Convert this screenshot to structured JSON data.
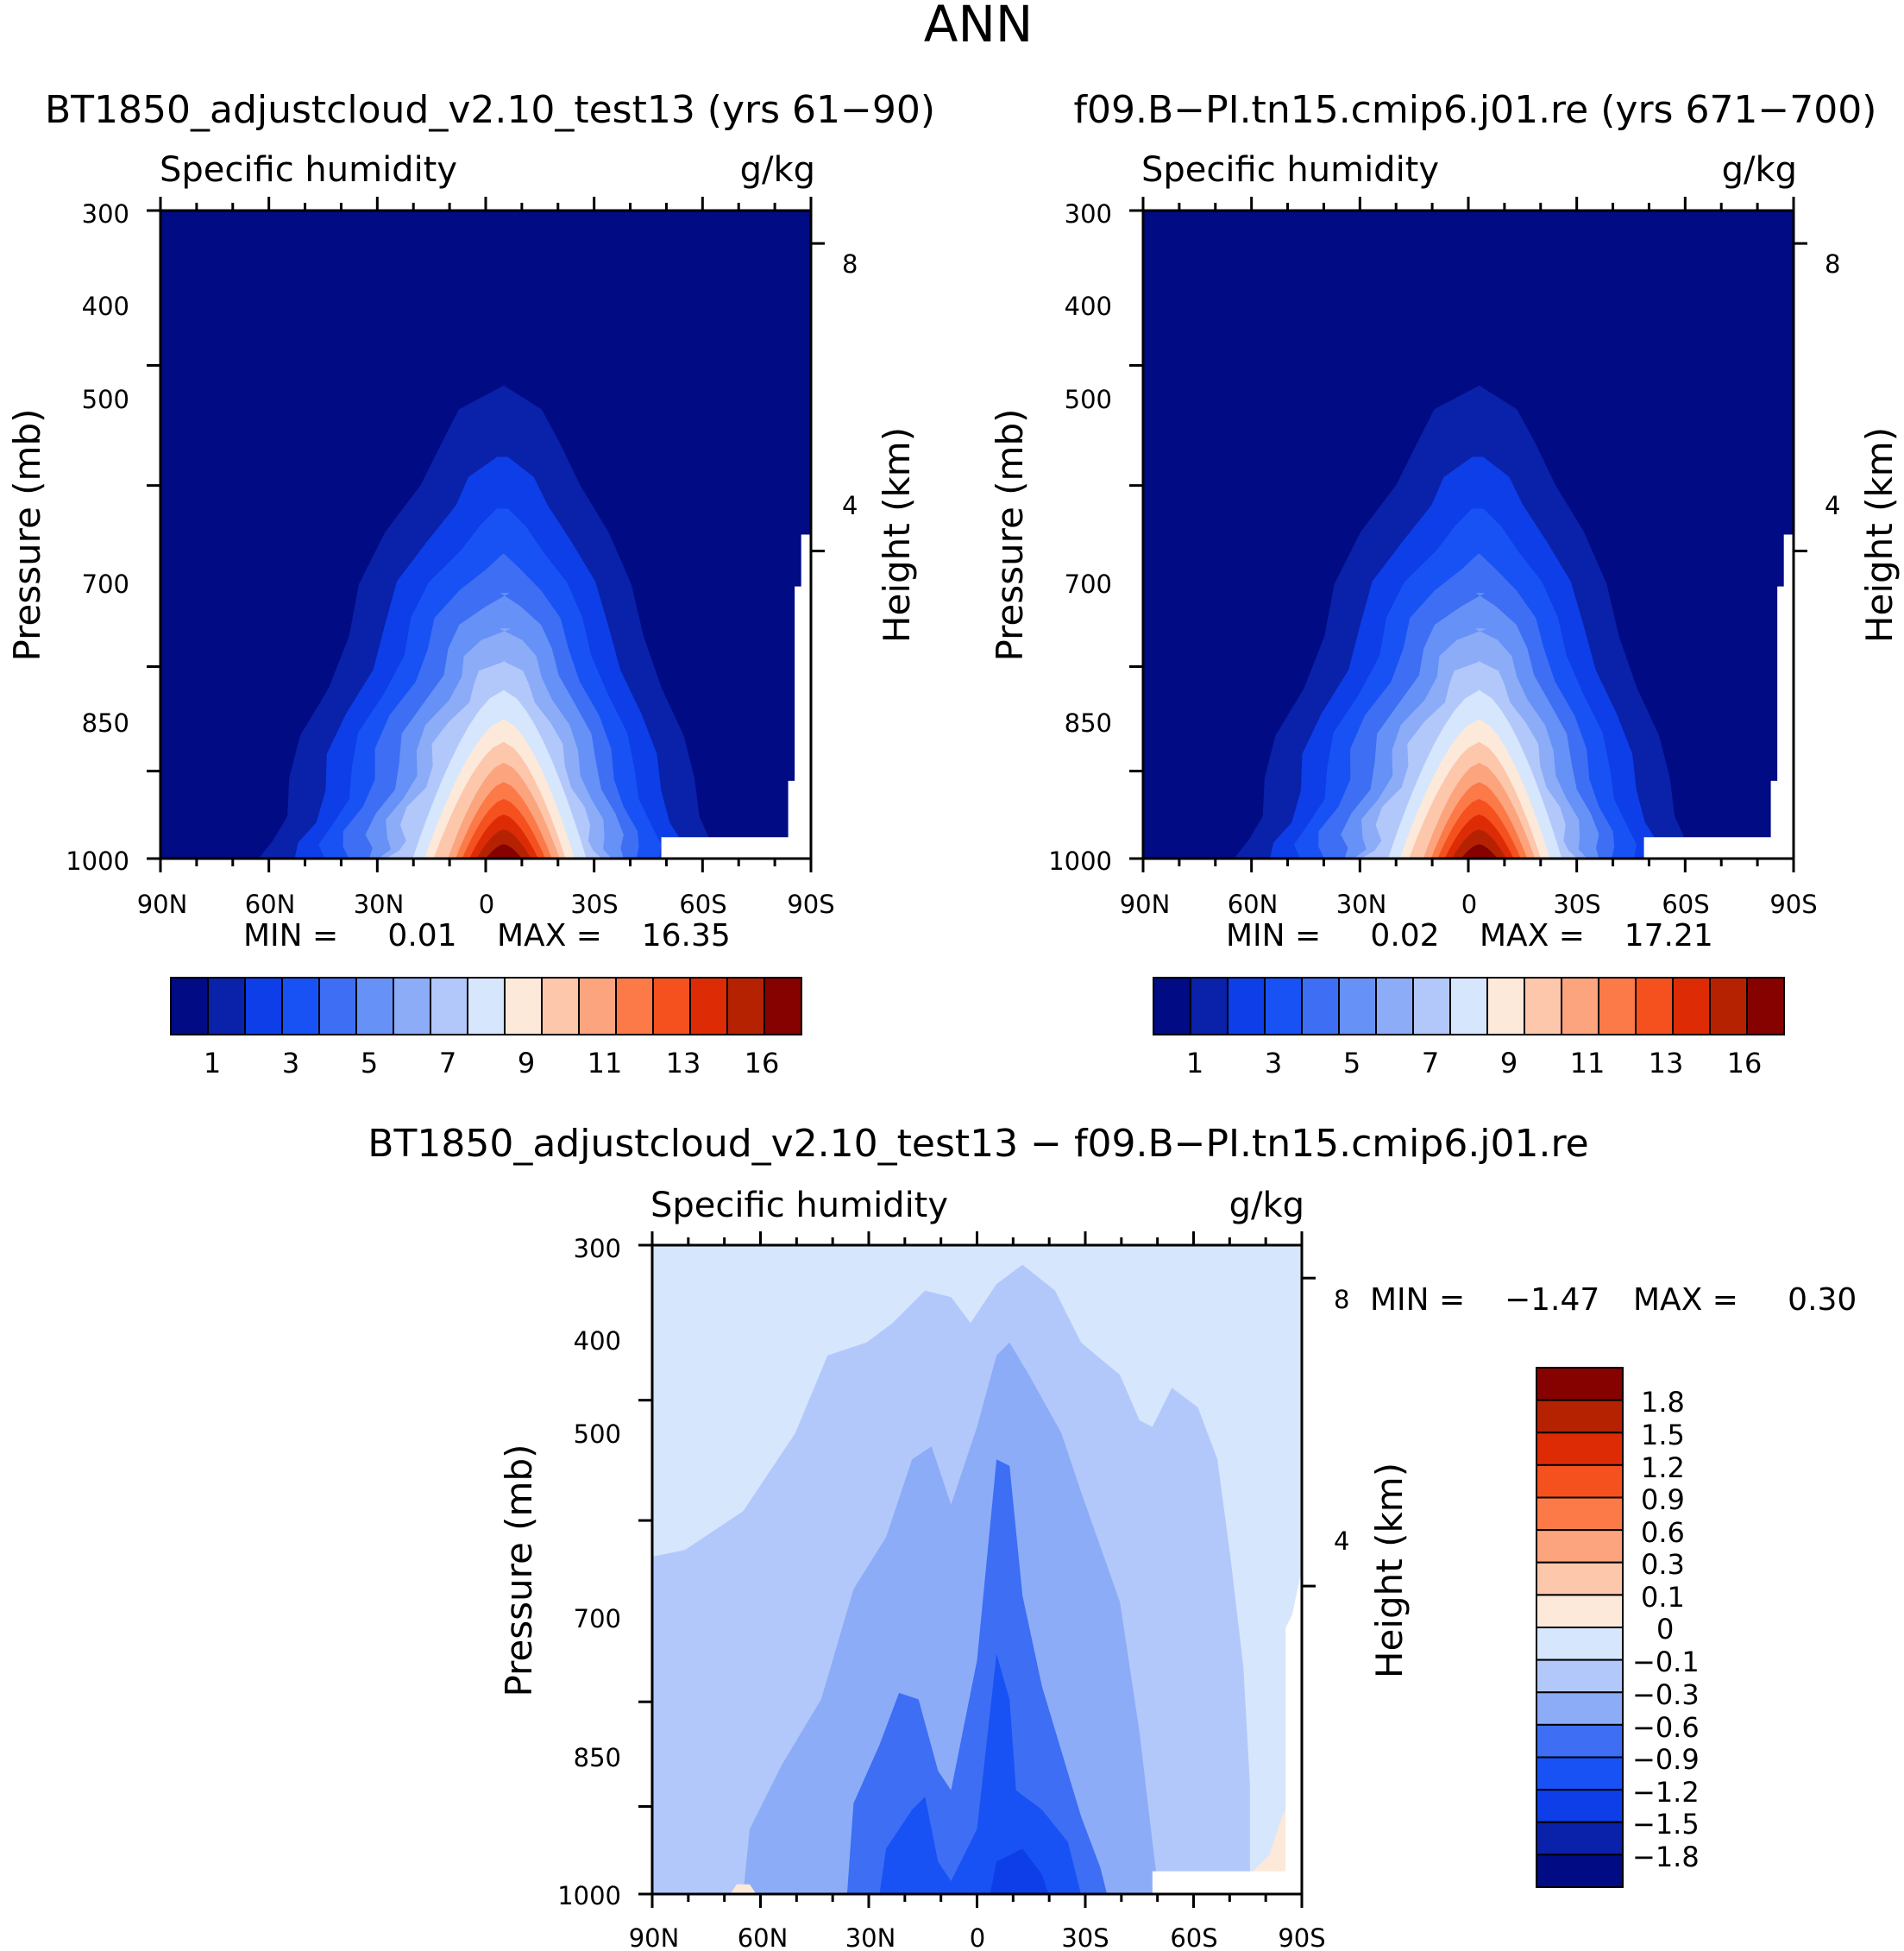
{
  "figure_title": "ANN",
  "chart_data": [
    {
      "type": "heatmap",
      "panel": "top-left",
      "title": "BT1850_adjustcloud_v2.10_test13 (yrs 61-90)",
      "title_display": "BT1850_adjustcloud_v2.10_test13 (yrs 61−90)",
      "variable": "Specific humidity",
      "units": "g/kg",
      "xlabel": "",
      "ylabel": "Pressure (mb)",
      "right_axis_label": "Height (km)",
      "x_tick_labels": [
        "90N",
        "60N",
        "30N",
        "0",
        "30S",
        "60S",
        "90S"
      ],
      "y_tick_labels": [
        "300",
        "400",
        "500",
        "700",
        "850",
        "1000"
      ],
      "right_tick_labels": [
        "8",
        "4"
      ],
      "min_text": "MIN =     0.01",
      "max_text": "MAX =    16.35",
      "min": 0.01,
      "max": 16.35,
      "peak_lat": -5,
      "colorbar_labels": [
        "1",
        "3",
        "5",
        "7",
        "9",
        "11",
        "13",
        "16"
      ]
    },
    {
      "type": "heatmap",
      "panel": "top-right",
      "title": "f09.B-PI.tn15.cmip6.j01.re (yrs 671-700)",
      "title_display": "f09.B−PI.tn15.cmip6.j01.re (yrs 671−700)",
      "variable": "Specific humidity",
      "units": "g/kg",
      "xlabel": "",
      "ylabel": "Pressure (mb)",
      "right_axis_label": "Height (km)",
      "x_tick_labels": [
        "90N",
        "60N",
        "30N",
        "0",
        "30S",
        "60S",
        "90S"
      ],
      "y_tick_labels": [
        "300",
        "400",
        "500",
        "700",
        "850",
        "1000"
      ],
      "right_tick_labels": [
        "8",
        "4"
      ],
      "min_text": "MIN =     0.02",
      "max_text": "MAX =    17.21",
      "min": 0.02,
      "max": 17.21,
      "peak_lat": -3,
      "colorbar_labels": [
        "1",
        "3",
        "5",
        "7",
        "9",
        "11",
        "13",
        "16"
      ]
    },
    {
      "type": "heatmap",
      "panel": "bottom-difference",
      "title": "BT1850_adjustcloud_v2.10_test13 - f09.B-PI.tn15.cmip6.j01.re",
      "title_display": "BT1850_adjustcloud_v2.10_test13 − f09.B−PI.tn15.cmip6.j01.re",
      "variable": "Specific humidity",
      "units": "g/kg",
      "xlabel": "",
      "ylabel": "Pressure (mb)",
      "right_axis_label": "Height (km)",
      "x_tick_labels": [
        "90N",
        "60N",
        "30N",
        "0",
        "30S",
        "60S",
        "90S"
      ],
      "y_tick_labels": [
        "300",
        "400",
        "500",
        "700",
        "850",
        "1000"
      ],
      "right_tick_labels": [
        "8",
        "4"
      ],
      "min_text": "MIN =    −1.47",
      "max_text": "MAX =     0.30",
      "min": -1.47,
      "max": 0.3,
      "colorbar_labels": [
        "1.8",
        "1.5",
        "1.2",
        "0.9",
        "0.6",
        "0.3",
        "0.1",
        "0",
        "−0.1",
        "−0.3",
        "−0.6",
        "−0.9",
        "−1.2",
        "−1.5",
        "−1.8"
      ]
    }
  ],
  "colors": {
    "full_field": [
      "#000b84",
      "#0a21aa",
      "#0d3ee8",
      "#1852f4",
      "#3d6ef4",
      "#6691f6",
      "#8cacf8",
      "#b3c8fa",
      "#d6e6fc",
      "#fde9da",
      "#fdc7ac",
      "#fca47e",
      "#fb7a48",
      "#f4511e",
      "#dd2b06",
      "#b52202",
      "#860200"
    ],
    "difference": [
      "#000b84",
      "#0a21aa",
      "#0d3ee8",
      "#1852f4",
      "#3d6ef4",
      "#8cacf8",
      "#b3c8fa",
      "#d6e6fc",
      "#fde9da",
      "#fdc7ac",
      "#fca47e",
      "#fb7a48",
      "#f4511e",
      "#dd2b06",
      "#b52202",
      "#860200"
    ]
  }
}
